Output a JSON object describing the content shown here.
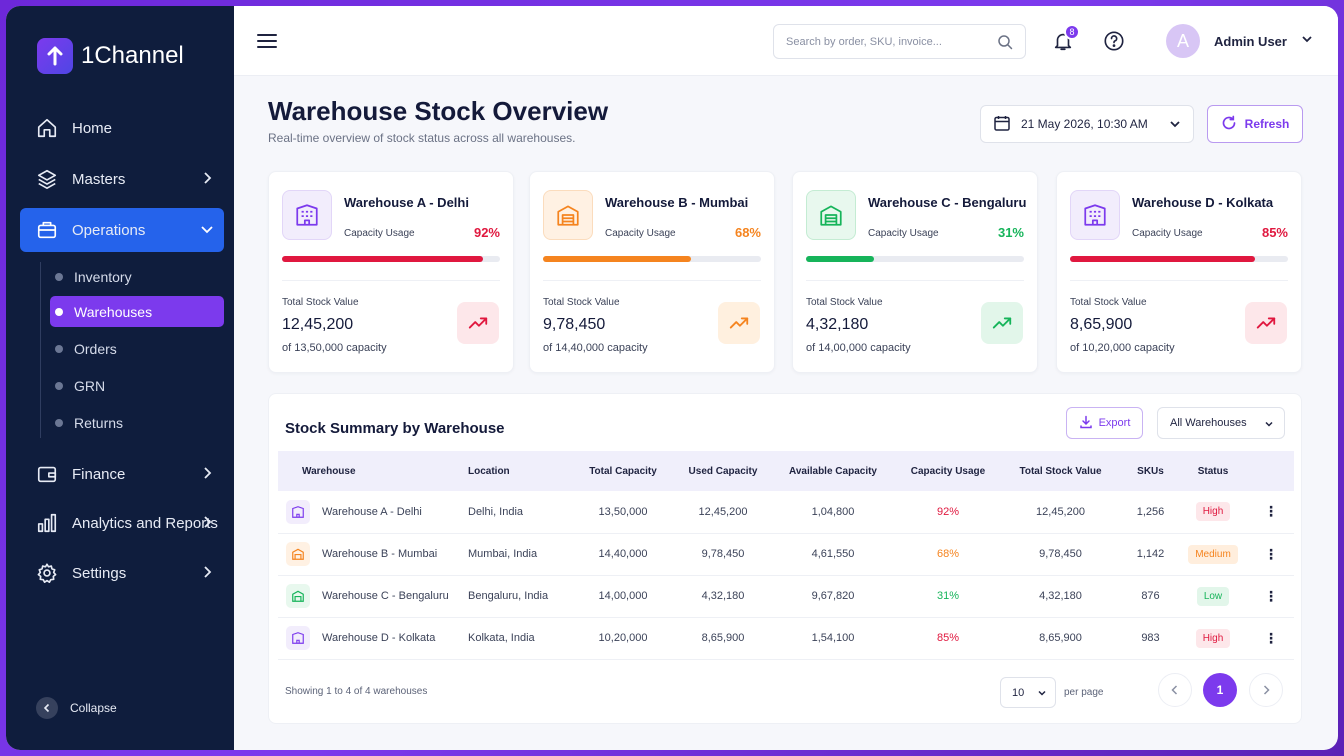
{
  "brand": {
    "name": "1Channel"
  },
  "sidebar": {
    "items": [
      {
        "label": "Home",
        "icon": "home-icon"
      },
      {
        "label": "Masters",
        "icon": "layers-icon"
      },
      {
        "label": "Operations",
        "icon": "briefcase-icon"
      },
      {
        "label": "Finance",
        "icon": "wallet-icon"
      },
      {
        "label": "Analytics and Reports",
        "icon": "bar-chart-icon"
      },
      {
        "label": "Settings",
        "icon": "gear-icon"
      }
    ],
    "sub_items": [
      {
        "label": "Inventory"
      },
      {
        "label": "Warehouses"
      },
      {
        "label": "Orders"
      },
      {
        "label": "GRN"
      },
      {
        "label": "Returns"
      }
    ],
    "active_item": "Operations",
    "active_sub_item": "Warehouses",
    "collapse_label": "Collapse"
  },
  "topbar": {
    "search_placeholder": "Search by order, SKU, invoice...",
    "notification_count": "8",
    "user_initial": "A",
    "user_name": "Admin User"
  },
  "header": {
    "title": "Warehouse Stock Overview",
    "subtitle": "Real-time overview of stock status across all warehouses.",
    "datetime": "21 May 2026, 10:30 AM",
    "refresh_label": "Refresh"
  },
  "colors": {
    "accent": "#7c3aed",
    "sidebar_bg": "#0f1d3d",
    "active_nav": "#2563eb",
    "high": "#e0183f",
    "medium": "#f5841f",
    "low": "#16b45a"
  },
  "cards": [
    {
      "name": "Warehouse A - Delhi",
      "capacity_label": "Capacity Usage",
      "usage_pct": 92,
      "usage_text": "92%",
      "total_label": "Total Stock Value",
      "total_value": "12,45,200",
      "capacity_text": "of 13,50,000 capacity",
      "tone": "high"
    },
    {
      "name": "Warehouse B - Mumbai",
      "capacity_label": "Capacity Usage",
      "usage_pct": 68,
      "usage_text": "68%",
      "total_label": "Total Stock Value",
      "total_value": "9,78,450",
      "capacity_text": "of 14,40,000 capacity",
      "tone": "medium"
    },
    {
      "name": "Warehouse C - Bengaluru",
      "capacity_label": "Capacity Usage",
      "usage_pct": 31,
      "usage_text": "31%",
      "total_label": "Total Stock Value",
      "total_value": "4,32,180",
      "capacity_text": "of 14,00,000 capacity",
      "tone": "low"
    },
    {
      "name": "Warehouse D - Kolkata",
      "capacity_label": "Capacity Usage",
      "usage_pct": 85,
      "usage_text": "85%",
      "total_label": "Total Stock Value",
      "total_value": "8,65,900",
      "capacity_text": "of 10,20,000 capacity",
      "tone": "high"
    }
  ],
  "summary": {
    "title": "Stock Summary by Warehouse",
    "export_label": "Export",
    "filter_value": "All Warehouses",
    "columns": [
      "Warehouse",
      "Location",
      "Total Capacity",
      "Used Capacity",
      "Available Capacity",
      "Capacity Usage",
      "Total Stock Value",
      "SKUs",
      "Status"
    ],
    "rows": [
      {
        "warehouse": "Warehouse A - Delhi",
        "location": "Delhi, India",
        "total_capacity": "13,50,000",
        "used_capacity": "12,45,200",
        "available_capacity": "1,04,800",
        "usage": "92%",
        "stock_value": "12,45,200",
        "skus": "1,256",
        "status": "High",
        "tone": "high"
      },
      {
        "warehouse": "Warehouse B - Mumbai",
        "location": "Mumbai, India",
        "total_capacity": "14,40,000",
        "used_capacity": "9,78,450",
        "available_capacity": "4,61,550",
        "usage": "68%",
        "stock_value": "9,78,450",
        "skus": "1,142",
        "status": "Medium",
        "tone": "medium"
      },
      {
        "warehouse": "Warehouse C - Bengaluru",
        "location": "Bengaluru, India",
        "total_capacity": "14,00,000",
        "used_capacity": "4,32,180",
        "available_capacity": "9,67,820",
        "usage": "31%",
        "stock_value": "4,32,180",
        "skus": "876",
        "status": "Low",
        "tone": "low"
      },
      {
        "warehouse": "Warehouse D - Kolkata",
        "location": "Kolkata, India",
        "total_capacity": "10,20,000",
        "used_capacity": "8,65,900",
        "available_capacity": "1,54,100",
        "usage": "85%",
        "stock_value": "8,65,900",
        "skus": "983",
        "status": "High",
        "tone": "high"
      }
    ],
    "footer_text": "Showing 1 to 4 of 4 warehouses",
    "per_page_value": "10",
    "per_page_label": "per page",
    "current_page": "1"
  }
}
